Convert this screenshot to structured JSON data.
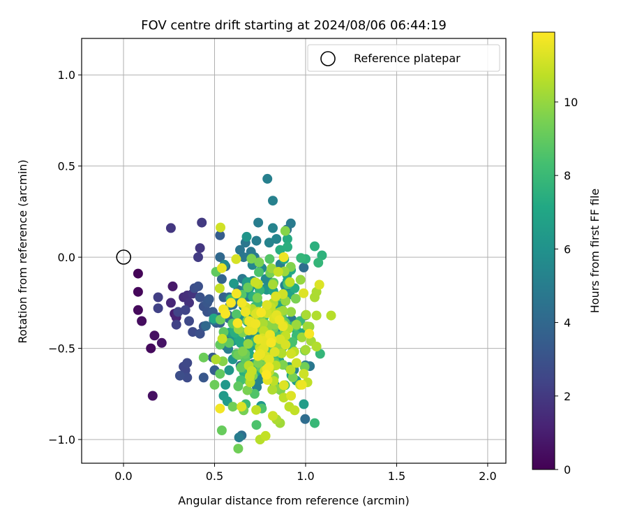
{
  "chart_data": {
    "type": "scatter",
    "title": "FOV centre drift starting at 2024/08/06 06:44:19",
    "xlabel": "Angular distance from reference (arcmin)",
    "ylabel": "Rotation from reference (arcmin)",
    "xlim": [
      -0.23,
      2.1
    ],
    "ylim": [
      -1.13,
      1.2
    ],
    "xticks": [
      0.0,
      0.5,
      1.0,
      1.5,
      2.0
    ],
    "xtick_labels": [
      "0.0",
      "0.5",
      "1.0",
      "1.5",
      "2.0"
    ],
    "yticks": [
      1.0,
      0.5,
      0.0,
      -0.5,
      -1.0
    ],
    "ytick_labels": [
      "1.0",
      "0.5",
      "0.0",
      "−0.5",
      "−1.0"
    ],
    "grid": true,
    "legend": {
      "placement": "upper right",
      "entries": [
        {
          "label": "Reference platepar",
          "marker": "open-circle",
          "x": 0.0,
          "y": 0.0
        }
      ]
    },
    "colorbar": {
      "label": "Hours from first FF file",
      "colormap": "viridis",
      "range": [
        0,
        11.9
      ],
      "ticks": [
        0,
        2,
        4,
        6,
        8,
        10
      ],
      "tick_labels": [
        "0",
        "2",
        "4",
        "6",
        "8",
        "10"
      ]
    },
    "points": [
      [
        0.08,
        -0.09,
        0.1
      ],
      [
        0.08,
        -0.19,
        0.2
      ],
      [
        0.08,
        -0.29,
        0.3
      ],
      [
        0.1,
        -0.35,
        0.4
      ],
      [
        0.17,
        -0.43,
        0.5
      ],
      [
        0.21,
        -0.47,
        0.6
      ],
      [
        0.15,
        -0.5,
        0.3
      ],
      [
        0.16,
        -0.76,
        0.5
      ],
      [
        0.27,
        -0.16,
        0.8
      ],
      [
        0.28,
        -0.31,
        1.0
      ],
      [
        0.29,
        -0.33,
        1.2
      ],
      [
        0.26,
        -0.25,
        1.3
      ],
      [
        0.33,
        -0.22,
        1.5
      ],
      [
        0.35,
        -0.21,
        1.6
      ],
      [
        0.36,
        -0.25,
        1.7
      ],
      [
        0.38,
        -0.2,
        1.8
      ],
      [
        0.42,
        0.05,
        1.9
      ],
      [
        0.43,
        0.19,
        2.0
      ],
      [
        0.26,
        0.16,
        1.9
      ],
      [
        0.41,
        0.0,
        2.1
      ],
      [
        0.19,
        -0.22,
        2.2
      ],
      [
        0.19,
        -0.28,
        2.3
      ],
      [
        0.29,
        -0.37,
        2.3
      ],
      [
        0.3,
        -0.3,
        2.4
      ],
      [
        0.34,
        -0.29,
        2.4
      ],
      [
        0.33,
        -0.6,
        2.5
      ],
      [
        0.34,
        -0.62,
        2.5
      ],
      [
        0.35,
        -0.58,
        2.6
      ],
      [
        0.35,
        -0.66,
        2.7
      ],
      [
        0.31,
        -0.65,
        2.8
      ],
      [
        0.36,
        -0.35,
        2.6
      ],
      [
        0.38,
        -0.41,
        2.7
      ],
      [
        0.39,
        -0.17,
        2.8
      ],
      [
        0.41,
        -0.16,
        2.9
      ],
      [
        0.42,
        -0.22,
        3.0
      ],
      [
        0.44,
        -0.27,
        3.0
      ],
      [
        0.42,
        -0.42,
        2.9
      ],
      [
        0.44,
        -0.38,
        3.1
      ],
      [
        0.46,
        -0.3,
        3.1
      ],
      [
        0.46,
        -0.25,
        3.2
      ],
      [
        0.47,
        -0.23,
        3.3
      ],
      [
        0.49,
        -0.3,
        3.3
      ],
      [
        0.44,
        -0.66,
        3.2
      ],
      [
        0.49,
        -0.55,
        3.4
      ],
      [
        0.5,
        -0.62,
        3.5
      ],
      [
        0.51,
        -0.36,
        3.4
      ],
      [
        0.52,
        -0.33,
        3.5
      ],
      [
        0.53,
        -0.36,
        3.6
      ],
      [
        0.53,
        0.12,
        3.5
      ],
      [
        0.55,
        -0.22,
        3.7
      ],
      [
        0.54,
        -0.12,
        3.8
      ],
      [
        0.53,
        0.0,
        4.0
      ],
      [
        0.56,
        -0.05,
        4.1
      ],
      [
        0.58,
        -0.22,
        4.2
      ],
      [
        0.6,
        -0.26,
        4.3
      ],
      [
        0.6,
        -0.35,
        4.4
      ],
      [
        0.63,
        -0.18,
        4.5
      ],
      [
        0.64,
        0.04,
        4.6
      ],
      [
        0.66,
        0.0,
        4.7
      ],
      [
        0.67,
        0.08,
        4.7
      ],
      [
        0.7,
        0.03,
        4.8
      ],
      [
        0.72,
        0.0,
        4.9
      ],
      [
        0.73,
        0.09,
        5.0
      ],
      [
        0.74,
        0.19,
        5.0
      ],
      [
        0.79,
        0.43,
        5.1
      ],
      [
        0.82,
        0.31,
        5.2
      ],
      [
        0.82,
        0.16,
        5.3
      ],
      [
        0.8,
        0.08,
        5.3
      ],
      [
        0.84,
        0.1,
        5.4
      ],
      [
        0.76,
        -0.06,
        5.5
      ],
      [
        0.78,
        -0.12,
        5.6
      ],
      [
        0.74,
        -0.16,
        5.6
      ],
      [
        0.71,
        -0.13,
        5.7
      ],
      [
        0.68,
        -0.2,
        5.8
      ],
      [
        0.66,
        -0.27,
        5.8
      ],
      [
        0.64,
        -0.34,
        5.9
      ],
      [
        0.62,
        -0.4,
        6.0
      ],
      [
        0.6,
        -0.46,
        6.0
      ],
      [
        0.6,
        -0.56,
        6.1
      ],
      [
        0.58,
        -0.62,
        6.2
      ],
      [
        0.56,
        -0.7,
        6.3
      ],
      [
        0.55,
        -0.76,
        6.4
      ],
      [
        0.57,
        -0.79,
        6.5
      ],
      [
        0.7,
        -0.3,
        6.5
      ],
      [
        0.72,
        -0.4,
        6.6
      ],
      [
        0.75,
        -0.47,
        6.7
      ],
      [
        0.78,
        -0.55,
        6.8
      ],
      [
        0.8,
        -0.62,
        6.8
      ],
      [
        0.83,
        -0.7,
        6.9
      ],
      [
        0.85,
        -0.28,
        7.0
      ],
      [
        0.88,
        -0.2,
        7.0
      ],
      [
        0.9,
        -0.13,
        7.1
      ],
      [
        0.92,
        -0.07,
        7.2
      ],
      [
        0.94,
        -0.17,
        7.3
      ],
      [
        0.9,
        0.1,
        7.3
      ],
      [
        0.86,
        0.04,
        7.4
      ],
      [
        1.05,
        0.06,
        7.5
      ],
      [
        1.09,
        0.01,
        7.6
      ],
      [
        1.0,
        -0.01,
        7.6
      ],
      [
        1.07,
        -0.03,
        7.8
      ],
      [
        1.08,
        -0.53,
        7.8
      ],
      [
        1.05,
        -0.91,
        7.9
      ],
      [
        0.97,
        -0.35,
        8.0
      ],
      [
        0.95,
        -0.43,
        8.0
      ],
      [
        0.93,
        -0.51,
        8.1
      ],
      [
        0.88,
        -0.35,
        8.2
      ],
      [
        0.84,
        -0.43,
        8.2
      ],
      [
        0.81,
        -0.39,
        8.3
      ],
      [
        0.77,
        -0.33,
        8.4
      ],
      [
        0.73,
        -0.92,
        8.5
      ],
      [
        0.76,
        -0.83,
        8.5
      ],
      [
        0.72,
        -0.75,
        8.6
      ],
      [
        0.69,
        -0.68,
        8.7
      ],
      [
        0.65,
        -0.6,
        8.7
      ],
      [
        0.62,
        -0.53,
        8.8
      ],
      [
        0.58,
        -0.47,
        8.9
      ],
      [
        0.55,
        -0.41,
        8.9
      ],
      [
        0.53,
        -0.48,
        9.0
      ],
      [
        0.53,
        -0.64,
        9.0
      ],
      [
        0.54,
        -0.95,
        9.1
      ],
      [
        0.44,
        -0.55,
        9.2
      ],
      [
        0.5,
        -0.7,
        9.2
      ],
      [
        0.6,
        -0.82,
        9.3
      ],
      [
        0.63,
        -1.05,
        9.3
      ],
      [
        0.66,
        -0.84,
        9.4
      ],
      [
        0.68,
        -0.73,
        9.5
      ],
      [
        0.71,
        -0.65,
        9.6
      ],
      [
        0.74,
        -0.58,
        9.6
      ],
      [
        0.77,
        -0.5,
        9.7
      ],
      [
        0.8,
        -0.43,
        9.8
      ],
      [
        0.83,
        -0.37,
        9.8
      ],
      [
        0.86,
        -0.3,
        9.9
      ],
      [
        0.89,
        -0.24,
        10.0
      ],
      [
        0.92,
        -0.3,
        10.0
      ],
      [
        0.95,
        -0.37,
        10.1
      ],
      [
        0.98,
        -0.44,
        10.2
      ],
      [
        1.01,
        -0.38,
        10.2
      ],
      [
        1.03,
        -0.46,
        10.3
      ],
      [
        1.05,
        -0.22,
        10.4
      ],
      [
        1.06,
        -0.19,
        10.4
      ],
      [
        1.06,
        -0.32,
        10.5
      ],
      [
        1.06,
        -0.49,
        10.5
      ],
      [
        1.14,
        -0.32,
        10.6
      ],
      [
        0.88,
        -0.77,
        10.7
      ],
      [
        0.91,
        -0.82,
        10.7
      ],
      [
        0.94,
        -0.84,
        10.8
      ],
      [
        0.97,
        -0.7,
        10.9
      ],
      [
        0.99,
        -0.64,
        11.0
      ],
      [
        0.95,
        -0.58,
        11.0
      ],
      [
        0.92,
        -0.53,
        11.1
      ],
      [
        0.89,
        -0.48,
        11.2
      ],
      [
        0.86,
        -0.45,
        11.2
      ],
      [
        0.83,
        -0.52,
        11.3
      ],
      [
        0.8,
        -0.56,
        11.4
      ],
      [
        0.77,
        -0.5,
        11.4
      ],
      [
        0.74,
        -0.45,
        11.5
      ],
      [
        0.71,
        -0.4,
        11.5
      ],
      [
        0.69,
        -0.35,
        11.6
      ],
      [
        0.67,
        -0.3,
        11.6
      ],
      [
        0.65,
        -0.25,
        11.7
      ],
      [
        0.62,
        -0.2,
        11.7
      ],
      [
        0.59,
        -0.25,
        11.8
      ],
      [
        0.56,
        -0.31,
        11.8
      ],
      [
        0.54,
        -0.06,
        11.5
      ],
      [
        0.53,
        -0.83,
        11.7
      ],
      [
        0.75,
        -1.0,
        10.6
      ],
      [
        0.78,
        -0.98,
        10.8
      ],
      [
        0.84,
        -0.89,
        10.4
      ],
      [
        0.82,
        -0.87,
        11.0
      ],
      [
        0.86,
        -0.91,
        10.2
      ],
      [
        0.92,
        -0.76,
        11.3
      ],
      [
        0.98,
        -0.7,
        11.6
      ],
      [
        1.02,
        -0.42,
        11.8
      ],
      [
        0.88,
        -0.0,
        11.6
      ],
      [
        0.85,
        -0.08,
        10.9
      ],
      [
        0.82,
        -0.15,
        10.3
      ]
    ],
    "extra_points_note": "",
    "dense_cluster": {
      "center": [
        0.78,
        -0.42
      ],
      "spread": [
        0.12,
        0.2
      ],
      "count": 300,
      "hour_range": [
        4,
        11.9
      ],
      "seed": 7
    }
  }
}
